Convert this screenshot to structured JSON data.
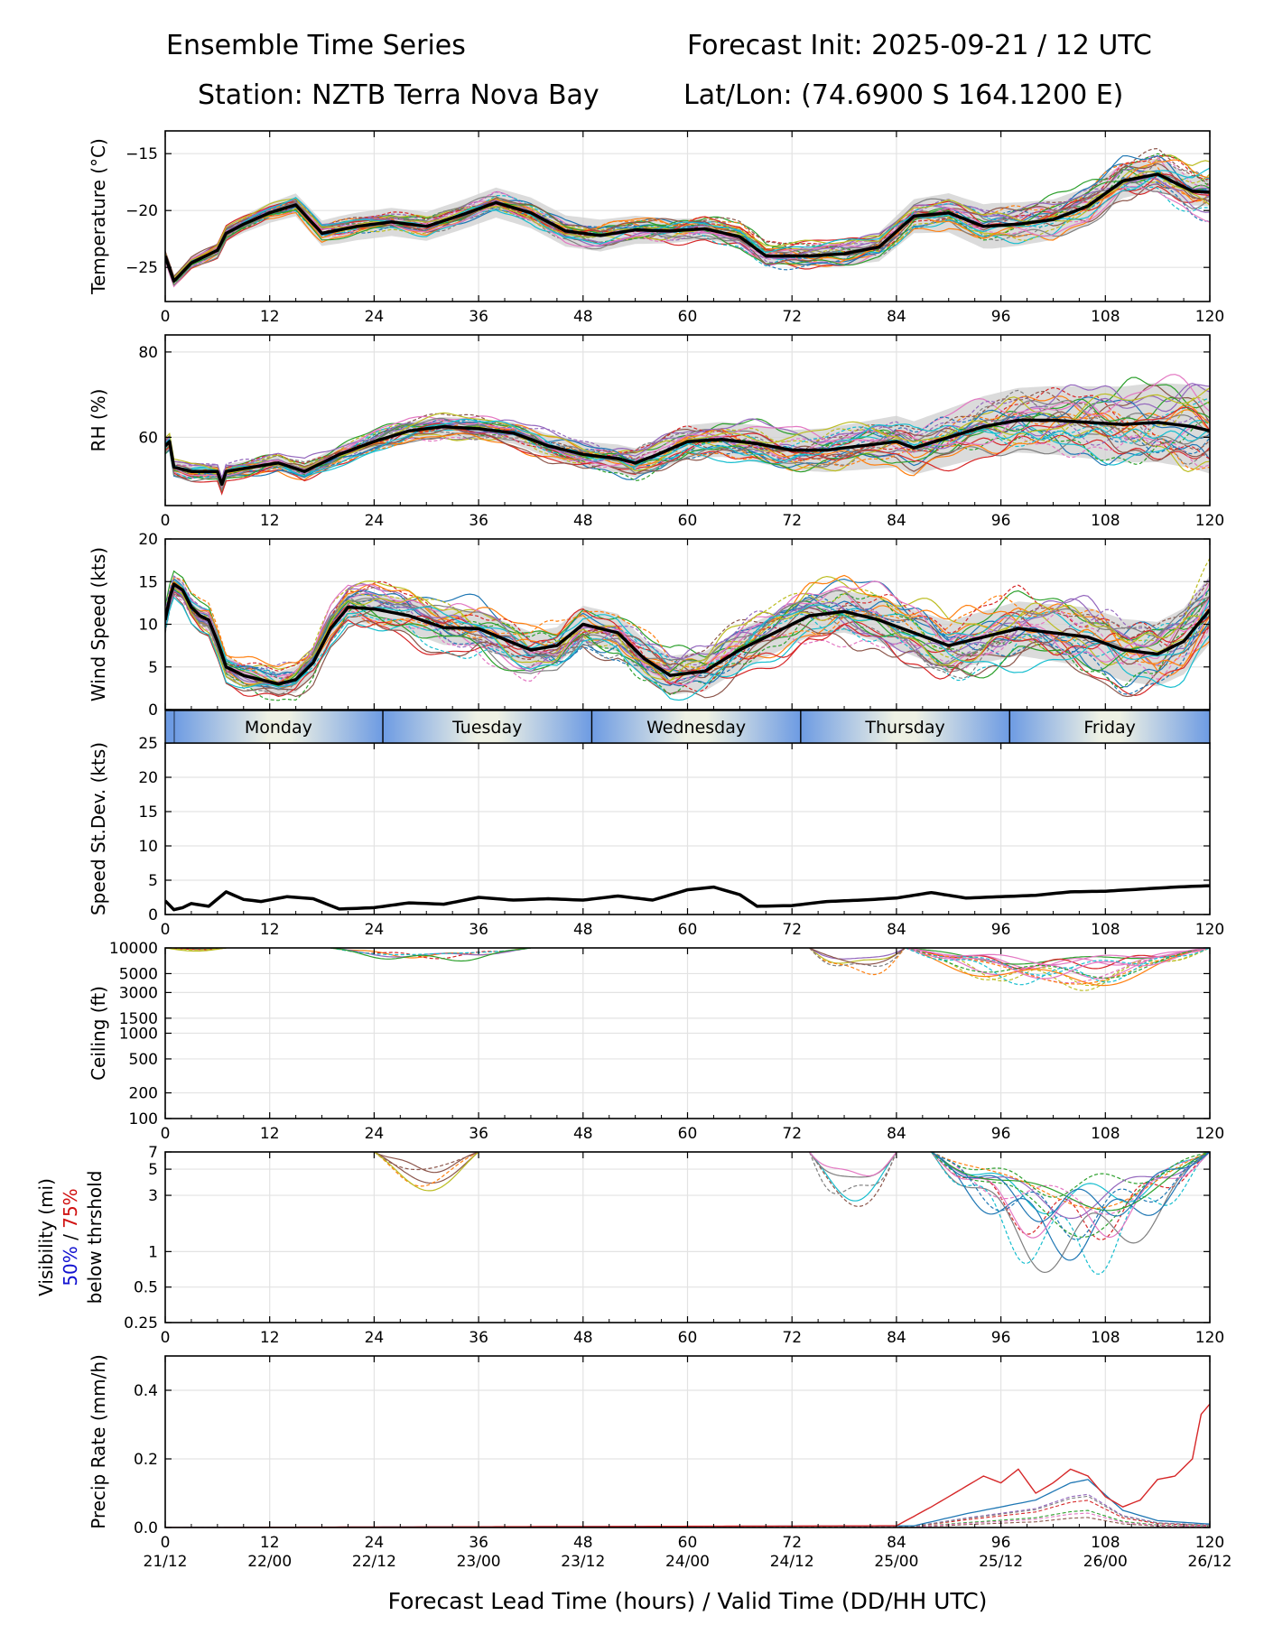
{
  "header": {
    "title_left": "Ensemble Time Series",
    "title_right": "Forecast Init: 2025-09-21 / 12 UTC",
    "station": "Station: NZTB Terra Nova Bay",
    "latlon": "Lat/Lon: (74.6900 S 164.1200 E)"
  },
  "chart_data": {
    "type": "line",
    "xlabel": "Forecast Lead Time (hours) / Valid Time (DD/HH UTC)",
    "xlim": [
      0,
      120
    ],
    "xticks": [
      0,
      12,
      24,
      36,
      48,
      60,
      72,
      84,
      96,
      108,
      120
    ],
    "valid_time_labels": [
      "21/12",
      "22/00",
      "22/12",
      "23/00",
      "23/12",
      "24/00",
      "24/12",
      "25/00",
      "25/12",
      "26/00",
      "26/12"
    ],
    "day_bands": [
      {
        "label": "Monday",
        "start": 1,
        "end": 25
      },
      {
        "label": "Tuesday",
        "start": 25,
        "end": 49
      },
      {
        "label": "Wednesday",
        "start": 49,
        "end": 73
      },
      {
        "label": "Thursday",
        "start": 73,
        "end": 97
      },
      {
        "label": "Friday",
        "start": 97,
        "end": 120
      }
    ],
    "member_colors": [
      "#1f77b4",
      "#ff7f0e",
      "#2ca02c",
      "#d62728",
      "#9467bd",
      "#8c564b",
      "#e377c2",
      "#7f7f7f",
      "#bcbd22",
      "#17becf"
    ],
    "panels": [
      {
        "id": "temperature",
        "ylabel": "Temperature (°C)",
        "scale": "linear",
        "ylim": [
          -28,
          -13
        ],
        "yticks": [
          -25,
          -20,
          -15
        ],
        "ytick_labels": [
          "−25",
          "−20",
          "−15"
        ],
        "mean": {
          "x": [
            0,
            1,
            3,
            6,
            7,
            9,
            12,
            15,
            18,
            22,
            26,
            30,
            34,
            38,
            42,
            46,
            50,
            54,
            58,
            62,
            66,
            69,
            74,
            78,
            82,
            86,
            90,
            94,
            98,
            102,
            106,
            110,
            114,
            118,
            120
          ],
          "y": [
            -24,
            -26.2,
            -24.6,
            -23.5,
            -22,
            -21.2,
            -20.2,
            -19.5,
            -22,
            -21.4,
            -21,
            -21.4,
            -20.4,
            -19.3,
            -20.2,
            -21.8,
            -22.2,
            -21.7,
            -21.8,
            -21.6,
            -22.3,
            -24,
            -24,
            -23.8,
            -23.2,
            -20.5,
            -20.2,
            -21.4,
            -21.2,
            -20.8,
            -19.6,
            -17.4,
            -16.8,
            -18.3,
            -18.4
          ]
        },
        "spread_width": [
          0.4,
          1.2,
          1.4,
          0.6,
          2.0,
          1.2
        ],
        "spread_width_x": [
          0,
          20,
          50,
          70,
          95,
          120
        ],
        "amp": [
          0.5,
          1.2,
          1.2,
          2.5
        ],
        "amp_x": [
          0,
          60,
          90,
          120
        ]
      },
      {
        "id": "rh",
        "ylabel": "RH (%)",
        "scale": "linear",
        "ylim": [
          44,
          84
        ],
        "yticks": [
          60,
          80
        ],
        "ytick_labels": [
          "60",
          "80"
        ],
        "mean": {
          "x": [
            0,
            0.5,
            1,
            3,
            6,
            6.5,
            7,
            10,
            13,
            16,
            20,
            24,
            28,
            32,
            36,
            40,
            44,
            48,
            52,
            54,
            56,
            60,
            64,
            68,
            72,
            76,
            80,
            84,
            86,
            90,
            94,
            98,
            102,
            106,
            110,
            114,
            118,
            120
          ],
          "y": [
            58,
            59,
            53,
            52,
            52,
            49,
            52,
            53,
            54,
            52,
            56,
            59,
            61.5,
            62.5,
            62,
            61,
            58,
            56,
            55,
            54,
            55.5,
            59,
            59.5,
            58.5,
            57,
            57,
            58,
            59,
            57.5,
            60,
            62.5,
            64,
            64,
            63.5,
            63,
            63.5,
            62.5,
            61.5
          ]
        },
        "spread_width": [
          1.5,
          2.5,
          4.5,
          10
        ],
        "spread_width_x": [
          0,
          40,
          70,
          120
        ],
        "amp": [
          2,
          3,
          5,
          10
        ],
        "amp_x": [
          0,
          40,
          80,
          120
        ]
      },
      {
        "id": "wind",
        "ylabel": "Wind Speed (kts)",
        "scale": "linear",
        "ylim": [
          0,
          20
        ],
        "yticks": [
          0,
          5,
          10,
          15,
          20
        ],
        "ytick_labels": [
          "0",
          "5",
          "10",
          "15",
          "20"
        ],
        "mean": {
          "x": [
            0,
            0.5,
            1,
            2,
            3,
            4,
            5,
            6,
            7,
            9,
            11,
            13,
            15,
            17,
            19,
            21,
            24,
            28,
            32,
            36,
            40,
            42,
            45,
            48,
            52,
            55,
            58,
            62,
            66,
            70,
            74,
            78,
            82,
            86,
            90,
            94,
            98,
            102,
            106,
            110,
            114,
            117,
            120
          ],
          "y": [
            10.5,
            13,
            14.7,
            14,
            12,
            11,
            10.5,
            8,
            5,
            4,
            3.5,
            3,
            3.5,
            5.5,
            9.5,
            12,
            11.8,
            11,
            9.6,
            9.5,
            7.8,
            7,
            7.5,
            10,
            9,
            6,
            4,
            4.5,
            7,
            9,
            11,
            11.5,
            10.5,
            9,
            7.5,
            8.5,
            9.5,
            9,
            8.5,
            7,
            6.5,
            8,
            11.7
          ]
        },
        "spread_width": [
          1.0,
          2.0,
          2.5,
          4
        ],
        "spread_width_x": [
          0,
          30,
          80,
          120
        ],
        "amp": [
          1.5,
          3,
          3.5,
          5
        ],
        "amp_x": [
          0,
          30,
          80,
          120
        ]
      },
      {
        "id": "stdev",
        "ylabel": "Speed St.Dev. (kts)",
        "scale": "linear",
        "ylim": [
          0,
          25
        ],
        "yticks": [
          0,
          5,
          10,
          15,
          20,
          25
        ],
        "ytick_labels": [
          "0",
          "5",
          "10",
          "15",
          "20",
          "25"
        ],
        "mean": {
          "x": [
            0,
            1,
            2,
            3,
            5,
            7,
            9,
            11,
            14,
            17,
            20,
            24,
            28,
            32,
            36,
            40,
            44,
            48,
            52,
            56,
            60,
            63,
            66,
            68,
            72,
            76,
            80,
            84,
            88,
            92,
            96,
            100,
            104,
            108,
            112,
            116,
            120
          ],
          "y": [
            2,
            0.7,
            1,
            1.6,
            1.2,
            3.3,
            2.2,
            1.9,
            2.6,
            2.3,
            0.8,
            1.0,
            1.7,
            1.5,
            2.5,
            2.1,
            2.3,
            2.1,
            2.7,
            2.1,
            3.6,
            4.0,
            2.9,
            1.2,
            1.3,
            1.9,
            2.1,
            2.4,
            3.2,
            2.4,
            2.6,
            2.8,
            3.3,
            3.4,
            3.7,
            4.0,
            4.2
          ]
        },
        "members": false
      },
      {
        "id": "ceiling",
        "ylabel": "Ceiling (ft)",
        "scale": "log",
        "ylim": [
          100,
          10000
        ],
        "yticks": [
          100,
          200,
          500,
          1000,
          1500,
          3000,
          5000,
          10000
        ],
        "ytick_labels": [
          "100",
          "200",
          "500",
          "1000",
          "1500",
          "3000",
          "5000",
          "10000"
        ],
        "member_windows": [
          [
            0,
            7
          ],
          [
            19,
            42
          ],
          [
            74,
            85
          ],
          [
            85,
            120
          ]
        ],
        "member_floor": [
          9000,
          6000,
          3500,
          2800
        ]
      },
      {
        "id": "visibility",
        "ylabel_line1": "Visibility (mi)",
        "ylabel_50": "50%",
        "ylabel_sep": " / ",
        "ylabel_75": "75%",
        "ylabel_line3": "below thrshold",
        "scale": "log",
        "ylim": [
          0.25,
          7
        ],
        "yticks": [
          0.25,
          0.5,
          1,
          3,
          5,
          7
        ],
        "ytick_labels": [
          "0.25",
          "0.5",
          "1",
          "3",
          "5",
          "7"
        ],
        "member_windows": [
          [
            24,
            36
          ],
          [
            74,
            84
          ],
          [
            88,
            120
          ]
        ],
        "member_floor": [
          2.2,
          1.1,
          0.55
        ]
      },
      {
        "id": "precip",
        "ylabel": "Precip Rate (mm/h)",
        "scale": "linear",
        "ylim": [
          0,
          0.5
        ],
        "yticks": [
          0.0,
          0.2,
          0.4
        ],
        "ytick_labels": [
          "0.0",
          "0.2",
          "0.4"
        ],
        "red_member": {
          "x": [
            0,
            84,
            88,
            92,
            94,
            96,
            98,
            100,
            102,
            104,
            106,
            108,
            110,
            112,
            114,
            116,
            118,
            119,
            120
          ],
          "y": [
            0,
            0.005,
            0.06,
            0.12,
            0.15,
            0.13,
            0.17,
            0.1,
            0.13,
            0.17,
            0.15,
            0.09,
            0.06,
            0.08,
            0.14,
            0.15,
            0.2,
            0.33,
            0.36
          ]
        },
        "blue_member": {
          "x": [
            0,
            86,
            92,
            96,
            100,
            104,
            106,
            110,
            114,
            120
          ],
          "y": [
            0,
            0.005,
            0.04,
            0.06,
            0.08,
            0.13,
            0.14,
            0.05,
            0.02,
            0.01
          ]
        }
      }
    ]
  }
}
